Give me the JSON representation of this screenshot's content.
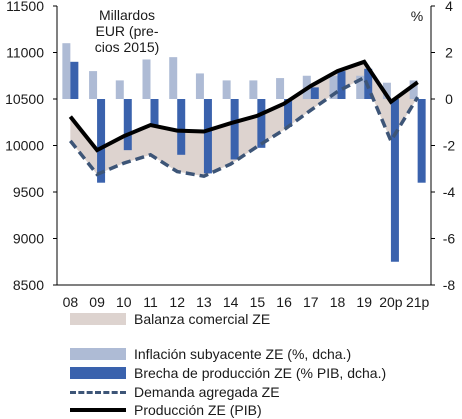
{
  "chart_data": {
    "type": "bar",
    "categories": [
      "08",
      "09",
      "10",
      "11",
      "12",
      "13",
      "14",
      "15",
      "16",
      "17",
      "18",
      "19",
      "20p",
      "21p"
    ],
    "left_axis": {
      "label_lines": [
        "Millardos",
        "EUR (pre-",
        "cios 2015)"
      ],
      "ylim": [
        8500,
        11500
      ],
      "ticks": [
        "8500",
        "9000",
        "9500",
        "10000",
        "10500",
        "11000",
        "11500"
      ]
    },
    "right_axis": {
      "label": "%",
      "ylim": [
        -8,
        4
      ],
      "ticks": [
        "-8",
        "-6",
        "-4",
        "-2",
        "0",
        "2",
        "4"
      ]
    },
    "grid": false,
    "legend_position": "bottom",
    "series": [
      {
        "name": "Balanza comercial ZE",
        "kind": "area_between_lines",
        "color": "#ddd3cf"
      },
      {
        "name": "Inflación subyacente ZE (%, dcha.)",
        "kind": "bar",
        "axis": "right",
        "color": "#aebbd5",
        "values": [
          2.4,
          1.2,
          0.8,
          1.7,
          1.8,
          1.1,
          0.8,
          0.8,
          0.9,
          1.0,
          1.0,
          1.0,
          0.7,
          0.8
        ]
      },
      {
        "name": "Brecha de producción ZE (% PIB, dcha.)",
        "kind": "bar",
        "axis": "right",
        "color": "#3a62ad",
        "values": [
          1.6,
          -3.6,
          -2.2,
          -1.2,
          -2.4,
          -3.2,
          -2.6,
          -2.1,
          -1.2,
          0.5,
          1.2,
          1.3,
          -7.0,
          -3.6
        ]
      },
      {
        "name": "Demanda agregada ZE",
        "kind": "line",
        "axis": "left",
        "dash": true,
        "color": "#3d5577",
        "values": [
          10050,
          9690,
          9810,
          9900,
          9720,
          9670,
          9800,
          9990,
          10170,
          10380,
          10580,
          10730,
          10050,
          10520
        ]
      },
      {
        "name": "Producción ZE (PIB)",
        "kind": "line",
        "axis": "left",
        "dash": false,
        "color": "#000000",
        "values": [
          10310,
          9950,
          10100,
          10220,
          10160,
          10150,
          10240,
          10320,
          10450,
          10640,
          10800,
          10900,
          10470,
          10680
        ]
      }
    ]
  }
}
